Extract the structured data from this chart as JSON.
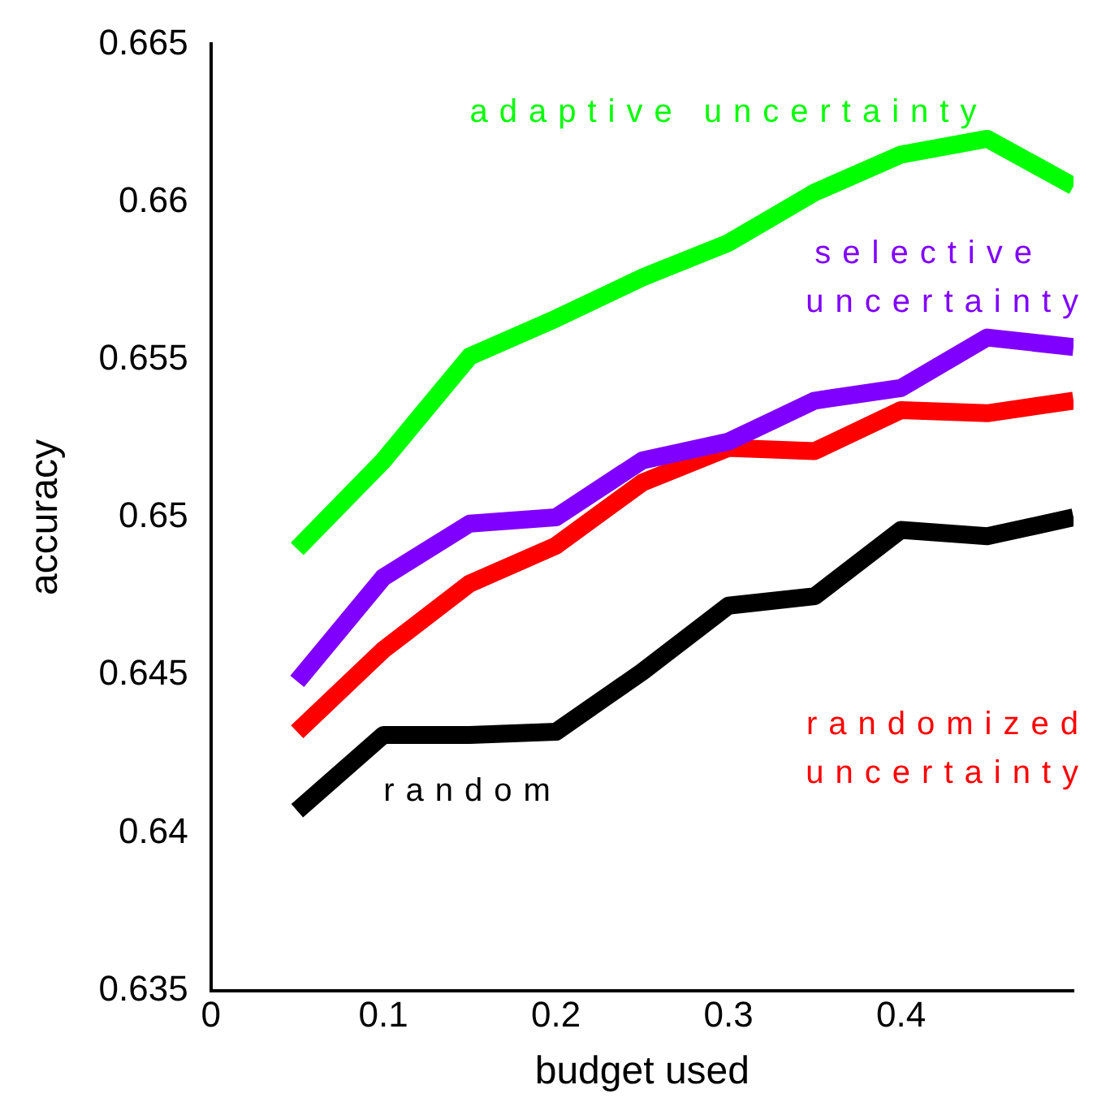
{
  "chart_data": {
    "type": "line",
    "xlabel": "budget used",
    "ylabel": "accuracy",
    "x": [
      0.05,
      0.1,
      0.15,
      0.2,
      0.25,
      0.3,
      0.35,
      0.4,
      0.45,
      0.5
    ],
    "series": [
      {
        "name": "adaptive uncertainty",
        "color": "#00ff00",
        "values": [
          0.649,
          0.6518,
          0.6551,
          0.6563,
          0.6576,
          0.6587,
          0.6603,
          0.6615,
          0.662,
          0.6605
        ]
      },
      {
        "name": "selective uncertainty",
        "color": "#8000ff",
        "values": [
          0.6448,
          0.6481,
          0.6498,
          0.65,
          0.6518,
          0.6524,
          0.6537,
          0.6541,
          0.6557,
          0.6554
        ]
      },
      {
        "name": "randomized uncertainty",
        "color": "#ff0000",
        "values": [
          0.6432,
          0.6458,
          0.6479,
          0.6491,
          0.6511,
          0.6522,
          0.6521,
          0.6534,
          0.6533,
          0.6537
        ]
      },
      {
        "name": "random",
        "color": "#000000",
        "values": [
          0.6407,
          0.6431,
          0.6431,
          0.6432,
          0.6451,
          0.6472,
          0.6475,
          0.6496,
          0.6494,
          0.65
        ]
      }
    ],
    "xlim": [
      0,
      0.5
    ],
    "xticks": [
      0,
      0.1,
      0.2,
      0.3,
      0.4
    ],
    "ylim": [
      0.635,
      0.665
    ],
    "yticks": [
      0.635,
      0.64,
      0.645,
      0.65,
      0.655,
      0.66,
      0.665
    ],
    "grid": false,
    "legend": false,
    "marker": "none",
    "line_style": "solid"
  }
}
